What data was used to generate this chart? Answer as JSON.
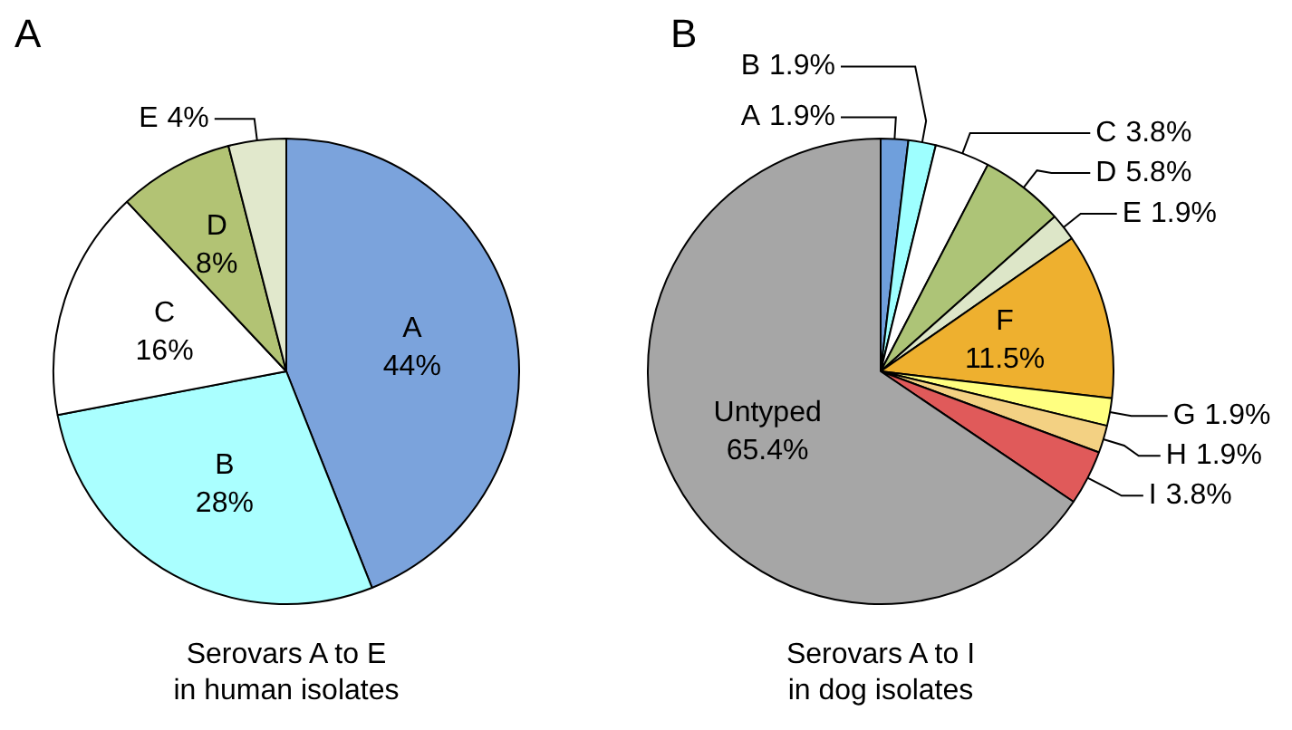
{
  "chart_data": [
    {
      "type": "pie",
      "title": "A",
      "categories": [
        "A",
        "B",
        "C",
        "D",
        "E"
      ],
      "values": [
        44,
        28,
        16,
        8,
        4
      ],
      "value_labels": [
        "44%",
        "28%",
        "16%",
        "8%",
        "4%"
      ],
      "colors": [
        "#7ba3dc",
        "#aaffff",
        "#ffffff",
        "#b2c374",
        "#e1e8cc"
      ],
      "annotations": [
        "Serovars A to E\nin human isolates"
      ]
    },
    {
      "type": "pie",
      "title": "B",
      "categories": [
        "A",
        "B",
        "C",
        "D",
        "E",
        "F",
        "G",
        "H",
        "I",
        "Untyped"
      ],
      "values": [
        1.9,
        1.9,
        3.8,
        5.8,
        1.9,
        11.5,
        1.9,
        1.9,
        3.8,
        65.4
      ],
      "value_labels": [
        "1.9%",
        "1.9%",
        "3.8%",
        "5.8%",
        "1.9%",
        "11.5%",
        "1.9%",
        "1.9%",
        "3.8%",
        "65.4%"
      ],
      "colors": [
        "#6f9fdc",
        "#9effff",
        "#ffffff",
        "#adc477",
        "#dde6c8",
        "#eeb02f",
        "#ffff80",
        "#f3d183",
        "#e05a5a",
        "#a6a6a6"
      ],
      "annotations": [
        "Serovars A to I\nin dog isolates"
      ]
    }
  ]
}
